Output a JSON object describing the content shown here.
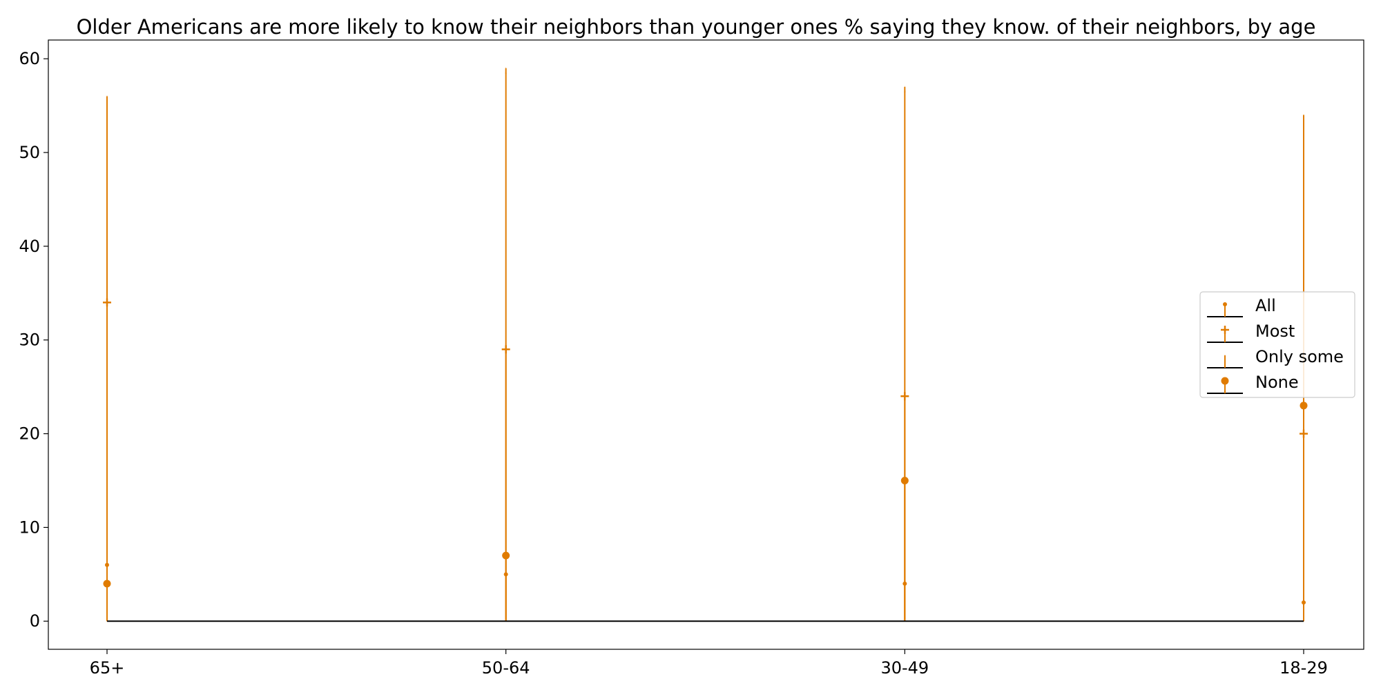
{
  "chart_data": {
    "type": "stem",
    "title": "Older Americans are more likely to know their neighbors than younger ones % saying they know. of their neighbors, by age",
    "xlabel": "",
    "ylabel": "",
    "categories": [
      "65+",
      "50-64",
      "30-49",
      "18-29"
    ],
    "ylim": [
      -3,
      62
    ],
    "yticks": [
      0,
      10,
      20,
      30,
      40,
      50,
      60
    ],
    "grid": false,
    "legend_position": "center-right",
    "color": "#e07b00",
    "baseline_color": "#000000",
    "series": [
      {
        "name": "All",
        "marker": "small-dot",
        "values": [
          6,
          5,
          4,
          2
        ]
      },
      {
        "name": "Most",
        "marker": "plus",
        "values": [
          34,
          29,
          24,
          20
        ]
      },
      {
        "name": "Only some",
        "marker": "thin-line",
        "values": [
          56,
          59,
          57,
          54
        ]
      },
      {
        "name": "None",
        "marker": "dot",
        "values": [
          4,
          7,
          15,
          23
        ]
      }
    ]
  }
}
